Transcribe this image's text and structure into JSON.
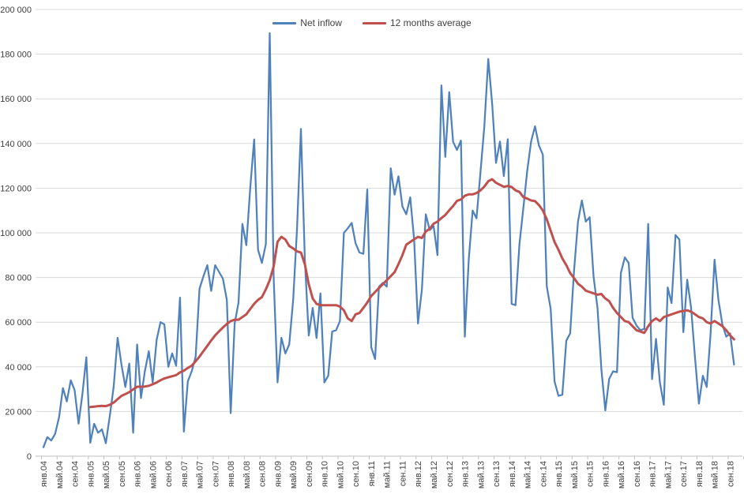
{
  "chart_data": {
    "type": "line",
    "title": "",
    "x_unit": "month",
    "x_range": [
      "янв.04",
      "окт.18"
    ],
    "x_tick_labels": [
      "янв.04",
      "май.04",
      "сен.04",
      "янв.05",
      "май.05",
      "сен.05",
      "янв.06",
      "май.06",
      "сен.06",
      "янв.07",
      "май.07",
      "сен.07",
      "янв.08",
      "май.08",
      "сен.08",
      "янв.09",
      "май.09",
      "сен.09",
      "янв.10",
      "май.10",
      "сен.10",
      "янв.11",
      "май.11",
      "сен.11",
      "янв.12",
      "май.12",
      "сен.12",
      "янв.13",
      "май.13",
      "сен.13",
      "янв.14",
      "май.14",
      "сен.14",
      "янв.15",
      "май.15",
      "сен.15",
      "янв.16",
      "май.16",
      "сен.16",
      "янв.17",
      "май.17",
      "сен.17",
      "янв.18",
      "май.18",
      "сен.18"
    ],
    "ylim": [
      0,
      200000
    ],
    "y_tick_step": 20000,
    "y_tick_labels": [
      "0",
      "20 000",
      "40 000",
      "60 000",
      "80 000",
      "100 000",
      "120 000",
      "140 000",
      "160 000",
      "180 000",
      "200 000"
    ],
    "grid": "horizontal",
    "legend_position": "top-center",
    "series": [
      {
        "name": "Net inflow",
        "color": "#4f81bd",
        "stroke_width": 2.25,
        "values": [
          4000,
          8500,
          7000,
          10000,
          17500,
          30500,
          24500,
          34000,
          29500,
          14600,
          28000,
          44300,
          6000,
          14500,
          10500,
          12000,
          5800,
          18000,
          31000,
          53000,
          41000,
          31000,
          41500,
          10500,
          50000,
          26000,
          38000,
          47000,
          33000,
          52000,
          60000,
          59000,
          40000,
          46000,
          40500,
          71000,
          11000,
          33500,
          38000,
          44500,
          75000,
          80500,
          85500,
          74000,
          85500,
          82500,
          79500,
          70000,
          19300,
          59400,
          68800,
          104000,
          94500,
          120000,
          141800,
          92400,
          86500,
          95000,
          189400,
          80000,
          33000,
          53000,
          46000,
          50000,
          70000,
          102000,
          146500,
          88000,
          54000,
          66400,
          52900,
          72900,
          33000,
          36000,
          55800,
          56400,
          60500,
          100000,
          102000,
          104400,
          95300,
          91200,
          90600,
          119400,
          48800,
          43500,
          75900,
          77600,
          75900,
          128900,
          117100,
          125300,
          111800,
          108300,
          115900,
          97100,
          59400,
          74700,
          108300,
          101200,
          103000,
          90000,
          166000,
          134000,
          163000,
          140700,
          137100,
          141300,
          53500,
          88000,
          110000,
          106500,
          127000,
          147500,
          177800,
          158000,
          131300,
          140900,
          125400,
          141900,
          68200,
          67600,
          95000,
          111000,
          128000,
          141000,
          147700,
          139000,
          135000,
          76000,
          66000,
          33500,
          27000,
          27500,
          51700,
          55000,
          83000,
          105000,
          114500,
          105000,
          107000,
          80500,
          66400,
          39000,
          20500,
          34600,
          38000,
          37600,
          82000,
          89000,
          86500,
          62000,
          58500,
          56400,
          57000,
          104000,
          34500,
          52500,
          33000,
          23000,
          75500,
          68500,
          99000,
          97000,
          55500,
          79000,
          66500,
          44000,
          23500,
          36000,
          31000,
          55000,
          88000,
          70000,
          59000,
          53500,
          55000,
          41000
        ]
      },
      {
        "name": "12 months average",
        "color": "#c0504d",
        "stroke_width": 3,
        "values": [
          null,
          null,
          null,
          null,
          null,
          null,
          null,
          null,
          null,
          null,
          null,
          null,
          22000,
          22200,
          22400,
          22500,
          22400,
          23000,
          24000,
          25500,
          27000,
          27800,
          28700,
          29900,
          31100,
          31100,
          31200,
          31500,
          32200,
          33000,
          34000,
          34800,
          35300,
          35800,
          36300,
          37500,
          38300,
          39500,
          40500,
          42500,
          44600,
          47000,
          49400,
          51800,
          54100,
          55900,
          57600,
          59200,
          60500,
          61100,
          61100,
          62300,
          63500,
          65900,
          68200,
          70000,
          71200,
          74700,
          78800,
          85000,
          96000,
          98200,
          97000,
          94100,
          93000,
          91700,
          91200,
          85900,
          77000,
          70600,
          68200,
          67600,
          67600,
          67600,
          67600,
          67600,
          67000,
          65300,
          61700,
          60500,
          63500,
          64100,
          66400,
          68800,
          71700,
          73500,
          75300,
          77000,
          78800,
          80600,
          82400,
          86000,
          90000,
          94700,
          95900,
          97100,
          98200,
          97700,
          100600,
          101800,
          104100,
          105000,
          106600,
          108000,
          110100,
          112000,
          114300,
          114900,
          116600,
          117200,
          117200,
          117800,
          119000,
          120700,
          123100,
          124000,
          122400,
          121500,
          120600,
          121000,
          120500,
          119000,
          118300,
          116000,
          115300,
          114500,
          114200,
          112400,
          110000,
          106000,
          101000,
          95900,
          92400,
          88500,
          85500,
          82000,
          79700,
          77200,
          75900,
          74100,
          73500,
          72900,
          72300,
          72600,
          70600,
          69400,
          66400,
          64100,
          62300,
          60500,
          60000,
          58200,
          56400,
          55800,
          55200,
          58200,
          60500,
          61700,
          60500,
          62300,
          62900,
          63500,
          64100,
          64700,
          65000,
          65300,
          64700,
          63500,
          62300,
          61700,
          60000,
          59400,
          60500,
          59400,
          58200,
          56400,
          54100,
          52300
        ]
      }
    ]
  },
  "colors": {
    "grid": "#d9d9d9",
    "axis": "#bfbfbf",
    "text": "#404040",
    "background": "#ffffff"
  }
}
